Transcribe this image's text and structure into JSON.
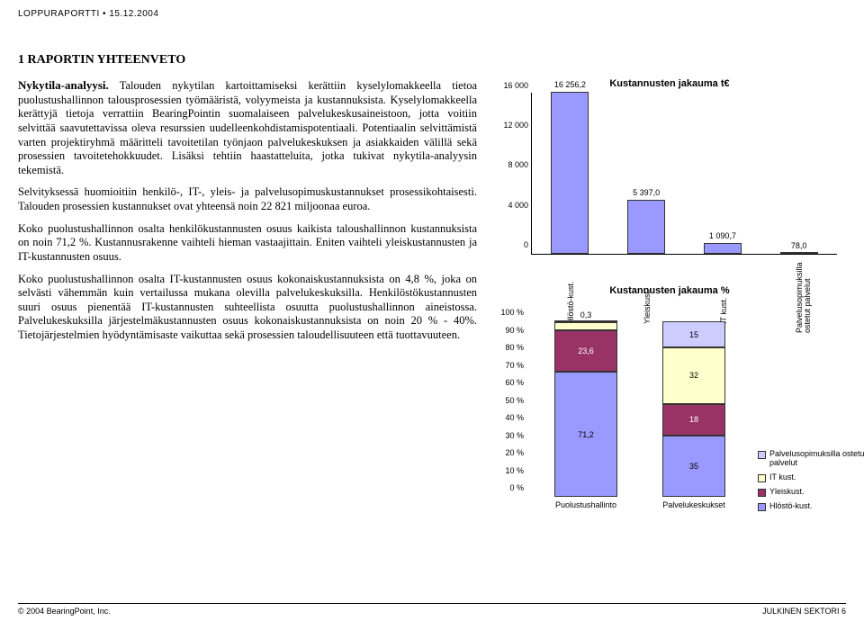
{
  "header": {
    "text": "LOPPURAPORTTI  •  15.12.2004"
  },
  "section_title": "1 RAPORTIN YHTEENVETO",
  "subtitle": "Nykytila-analyysi.",
  "paragraphs": {
    "p1": "Talouden nykytilan kartoittamiseksi kerättiin kyselylomakkeella tietoa puolustushallinnon talousprosessien työmääristä, volyymeista ja kustannuksista. Kyselylomakkeella kerättyjä tietoja verrattiin BearingPointin suomalaiseen palvelukeskusaineistoon, jotta voitiin selvittää saavutettavissa oleva resurssien uudelleenkohdistamispotentiaali. Potentiaalin selvittämistä varten projektiryhmä määritteli tavoitetilan työnjaon palvelukeskuksen ja asiakkaiden välillä sekä prosessien tavoitetehokkuudet. Lisäksi tehtiin haastatteluita, jotka tukivat nykytila-analyysin tekemistä.",
    "p2": "Selvityksessä huomioitiin henkilö-, IT-, yleis- ja palvelusopimuskustannukset prosessikohtaisesti. Talouden prosessien kustannukset ovat yhteensä noin 22 821 miljoonaa euroa.",
    "p3": "Koko puolustushallinnon osalta henkilökustannusten osuus kaikista taloushallinnon kustannuksista on noin 71,2 %. Kustannusrakenne vaihteli hieman vastaajittain. Eniten vaihteli yleiskustannusten ja IT-kustannusten osuus.",
    "p4": "Koko puolustushallinnon osalta IT-kustannusten osuus kokonaiskustannuksista on 4,8 %, joka on selvästi vähemmän kuin vertailussa mukana olevilla palvelukeskuksilla. Henkilöstökustannusten suuri osuus pienentää IT-kustannusten suhteellista osuutta puolustushallinnon aineistossa. Palvelukeskuksilla järjestelmäkustannusten osuus kokonaiskustannuksista on noin 20 % - 40%. Tietojärjestelmien hyödyntämisaste vaikuttaa sekä prosessien taloudellisuuteen että tuottavuuteen."
  },
  "chart1": {
    "title": "Kustannusten jakauma t€",
    "type": "bar",
    "ymax": 16256.2,
    "yticks": [
      0,
      4000,
      8000,
      12000,
      16000
    ],
    "ytick_labels": [
      "0",
      "4 000",
      "8 000",
      "12 000",
      "16 000"
    ],
    "categories": [
      "Hlöstö-kust.",
      "Yleiskust.",
      "IT kust.",
      "Palvelusopimuksilla ostetut palvelut"
    ],
    "values": [
      16256.2,
      5397.0,
      1090.7,
      78.0
    ],
    "value_labels": [
      "16 256,2",
      "5 397,0",
      "1 090,7",
      "78,0"
    ],
    "bar_color": "#9999ff",
    "plot_bg": "#ffffff",
    "axis_color": "#000000"
  },
  "chart2": {
    "title": "Kustannusten jakauma %",
    "type": "stacked_bar_pct",
    "yticks": [
      0,
      10,
      20,
      30,
      40,
      50,
      60,
      70,
      80,
      90,
      100
    ],
    "ytick_labels": [
      "0 %",
      "10 %",
      "20 %",
      "30 %",
      "40 %",
      "50 %",
      "60 %",
      "70 %",
      "80 %",
      "90 %",
      "100 %"
    ],
    "categories": [
      "Puolustushallinto",
      "Palvelukeskukset"
    ],
    "series": [
      {
        "name": "Hlöstö-kust.",
        "color": "#9999ff",
        "values": [
          71.2,
          35
        ]
      },
      {
        "name": "Yleiskust.",
        "color": "#993366",
        "values": [
          23.6,
          18
        ]
      },
      {
        "name": "IT kust.",
        "color": "#ffffcc",
        "values": [
          4.8,
          32
        ]
      },
      {
        "name": "Palvelusopimuksilla ostetut palvelut",
        "color": "#ccccff",
        "values": [
          0.3,
          15
        ]
      }
    ],
    "segment_labels": [
      [
        "71,2",
        "23,6",
        "4,8",
        "0,3"
      ],
      [
        "35",
        "18",
        "32",
        "15"
      ]
    ],
    "legend": [
      {
        "label": "Palvelusopimuksilla ostetut palvelut",
        "color": "#ccccff"
      },
      {
        "label": "IT kust.",
        "color": "#ffffcc"
      },
      {
        "label": "Yleiskust.",
        "color": "#993366"
      },
      {
        "label": "Hlöstö-kust.",
        "color": "#9999ff"
      }
    ]
  },
  "footer": {
    "left": "© 2004 BearingPoint, Inc.",
    "right": "JULKINEN SEKTORI     6"
  }
}
